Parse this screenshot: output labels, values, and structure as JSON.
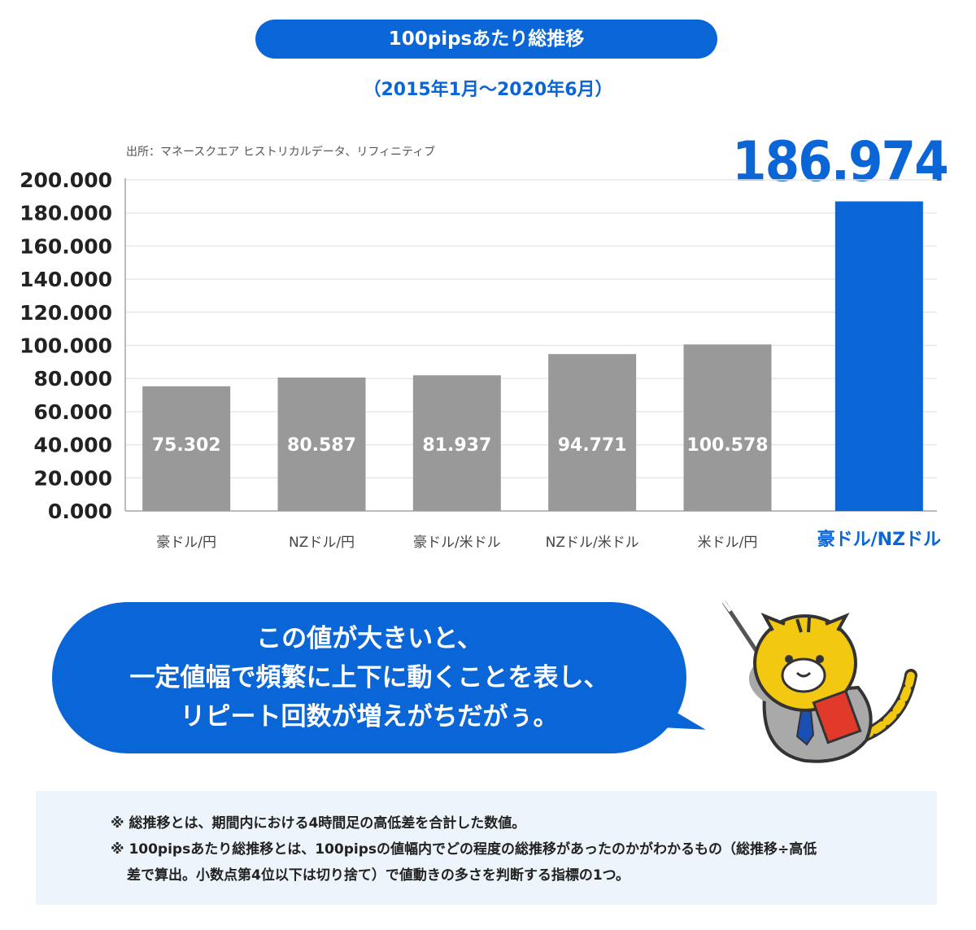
{
  "header": {
    "title": "100pipsあたり総推移",
    "period": "（2015年1月〜2020年6月）"
  },
  "source": "出所：マネースクエア ヒストリカルデータ、リフィニティブ",
  "highlight_value": "186.974",
  "colors": {
    "accent": "#0a66d6",
    "bar_gray": "#999999",
    "gridline": "#e8e8e8"
  },
  "chart_data": {
    "type": "bar",
    "categories": [
      "豪ドル/円",
      "NZドル/円",
      "豪ドル/米ドル",
      "NZドル/米ドル",
      "米ドル/円",
      "豪ドル/NZドル"
    ],
    "values": [
      75.302,
      80.587,
      81.937,
      94.771,
      100.578,
      186.974
    ],
    "value_labels": [
      "75.302",
      "80.587",
      "81.937",
      "94.771",
      "100.578",
      "186.974"
    ],
    "highlight_index": 5,
    "ylim": [
      0,
      200
    ],
    "yticks": [
      "0.000",
      "20.000",
      "40.000",
      "60.000",
      "80.000",
      "100.000",
      "120.000",
      "140.000",
      "160.000",
      "180.000",
      "200.000"
    ],
    "grid": true
  },
  "bubble": {
    "lines": [
      "この値が大きいと、",
      "一定値幅で頻繁に上下に動くことを表し、",
      "リピート回数が増えがちだがぅ。"
    ]
  },
  "notes": {
    "line1": "※ 総推移とは、期間内における4時間足の高低差を合計した数値。",
    "line2a": "※ 100pipsあたり総推移とは、100pipsの値幅内でどの程度の総推移があったのかがわかるもの（総推移÷高低",
    "line2b": "差で算出。小数点第4位以下は切り捨て）で値動きの多さを判断する指標の1つ。"
  }
}
